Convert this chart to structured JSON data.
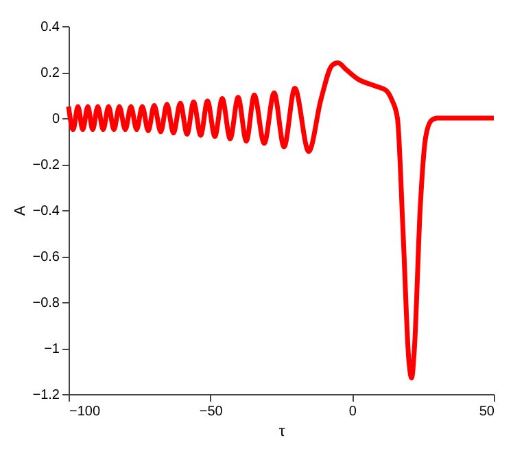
{
  "chart_data": {
    "type": "line",
    "xlabel": "τ",
    "ylabel": "A",
    "xlim": [
      -100,
      50
    ],
    "xticks": [
      -100,
      -50,
      0,
      50
    ],
    "ylim": [
      -1.2,
      0.4
    ],
    "yticks": [
      -1.2,
      -1,
      -0.8,
      -0.6,
      -0.4,
      -0.2,
      0,
      0.2,
      0.4
    ],
    "grid": false,
    "line_style": "solid",
    "series": [
      {
        "color": "#ff0000",
        "x": [
          -100,
          -98.4,
          -96.7,
          -95,
          -93.2,
          -91.5,
          -89.7,
          -87.8,
          -85.9,
          -84,
          -82.1,
          -80,
          -78,
          -76,
          -74,
          -71.9,
          -69.8,
          -67.5,
          -65.3,
          -63,
          -60.6,
          -58.2,
          -55.9,
          -53.4,
          -51,
          -48.4,
          -45.8,
          -43,
          -40.2,
          -37.3,
          -34.5,
          -31,
          -27.5,
          -24,
          -20.2,
          -15.3,
          -11,
          -7,
          -5,
          -2,
          2,
          8,
          12,
          14,
          16,
          18,
          20,
          21,
          22,
          24,
          26,
          28,
          30,
          50
        ],
        "values": [
          0.05,
          -0.05,
          0.05,
          -0.05,
          0.05,
          -0.05,
          0.05,
          -0.05,
          0.05,
          -0.05,
          0.05,
          -0.05,
          0.05,
          -0.05,
          0.05,
          -0.055,
          0.055,
          -0.06,
          0.06,
          -0.065,
          0.065,
          -0.07,
          0.07,
          -0.075,
          0.075,
          -0.08,
          0.085,
          -0.09,
          0.09,
          -0.1,
          0.1,
          -0.11,
          0.11,
          -0.125,
          0.13,
          -0.145,
          0.08,
          0.23,
          0.24,
          0.21,
          0.17,
          0.14,
          0.12,
          0.08,
          0,
          -0.5,
          -1.05,
          -1.13,
          -1,
          -0.4,
          -0.08,
          -0.01,
          0,
          0
        ]
      }
    ]
  }
}
